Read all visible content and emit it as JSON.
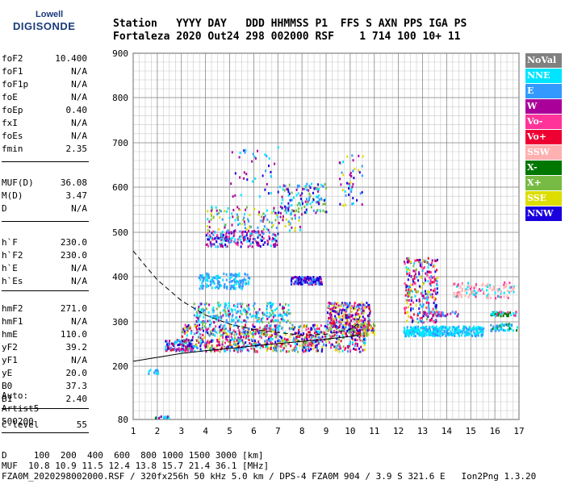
{
  "logo": {
    "line1": "Lowell",
    "line2": "DIGISONDE"
  },
  "header": {
    "line1": "Station   YYYY DAY   DDD HHMMSS P1  FFS S AXN PPS IGA PS",
    "line2": "Fortaleza 2020 Out24 298 002000 RSF    1 714 100 10+ 11"
  },
  "params": [
    {
      "k": "foF2",
      "v": "10.400"
    },
    {
      "k": "foF1",
      "v": "N/A"
    },
    {
      "k": "foF1p",
      "v": "N/A"
    },
    {
      "k": "foE",
      "v": "N/A"
    },
    {
      "k": "foEp",
      "v": "0.40"
    },
    {
      "k": "fxI",
      "v": "N/A"
    },
    {
      "k": "foEs",
      "v": "N/A"
    },
    {
      "k": "fmin",
      "v": "2.35"
    },
    {
      "k": "MUF(D)",
      "v": "36.08"
    },
    {
      "k": "M(D)",
      "v": "3.47"
    },
    {
      "k": "D",
      "v": "N/A"
    },
    {
      "k": "h`F",
      "v": "230.0"
    },
    {
      "k": "h`F2",
      "v": "230.0"
    },
    {
      "k": "h`E",
      "v": "N/A"
    },
    {
      "k": "h`Es",
      "v": "N/A"
    },
    {
      "k": "hmF2",
      "v": "271.0"
    },
    {
      "k": "hmF1",
      "v": "N/A"
    },
    {
      "k": "hmE",
      "v": "110.0"
    },
    {
      "k": "yF2",
      "v": "39.2"
    },
    {
      "k": "yF1",
      "v": "N/A"
    },
    {
      "k": "yE",
      "v": "20.0"
    },
    {
      "k": "B0",
      "v": "37.3"
    },
    {
      "k": "B1",
      "v": "2.40"
    },
    {
      "k": "C-level",
      "v": "55"
    }
  ],
  "auto": {
    "l1": "Auto:",
    "l2": "Artist5",
    "l3": "500200"
  },
  "legend": [
    {
      "label": "NoVal",
      "color": "#808080"
    },
    {
      "label": "NNE",
      "color": "#00e5ff"
    },
    {
      "label": "E",
      "color": "#3399ff"
    },
    {
      "label": "W",
      "color": "#aa0099"
    },
    {
      "label": "Vo-",
      "color": "#ff3399"
    },
    {
      "label": "Vo+",
      "color": "#ee0033"
    },
    {
      "label": "SSW",
      "color": "#ffb0b0"
    },
    {
      "label": "X-",
      "color": "#007700"
    },
    {
      "label": "X+",
      "color": "#77bb44"
    },
    {
      "label": "SSE",
      "color": "#dddd00"
    },
    {
      "label": "NNW",
      "color": "#1a00dd"
    }
  ],
  "footer": {
    "line1": "D     100  200  400  600  800 1000 1500 3000 [km]",
    "line2": "MUF  10.8 10.9 11.5 12.4 13.8 15.7 21.4 36.1 [MHz]",
    "line3": "FZA0M_2020298002000.RSF / 320fx256h 50 kHz 5.0 km / DPS-4 FZA0M 904 / 3.9 S 321.6 E   Ion2Png 1.3.20"
  },
  "chart_data": {
    "type": "scatter",
    "x_ticks": [
      1,
      2,
      3,
      4,
      5,
      6,
      7,
      8,
      9,
      10,
      11,
      12,
      13,
      14,
      15,
      16,
      17
    ],
    "y_ticks": [
      80,
      200,
      300,
      400,
      500,
      600,
      700,
      800,
      900
    ],
    "xlim": [
      1,
      17
    ],
    "ylim": [
      80,
      900
    ],
    "y_scale": "nonlinear",
    "grid": true,
    "legend_placement": "right",
    "curves": {
      "profile": [
        [
          1,
          211
        ],
        [
          2,
          220
        ],
        [
          3,
          229
        ],
        [
          4,
          235
        ],
        [
          5,
          240
        ],
        [
          6,
          246
        ],
        [
          7,
          251
        ],
        [
          8,
          256
        ],
        [
          9,
          261
        ],
        [
          10,
          267
        ],
        [
          10.4,
          271
        ]
      ],
      "dashed": [
        [
          1,
          458
        ],
        [
          1.5,
          425
        ],
        [
          2,
          393
        ],
        [
          3,
          347
        ],
        [
          4,
          315
        ],
        [
          5,
          295
        ],
        [
          6,
          283
        ],
        [
          7,
          276
        ],
        [
          8,
          270
        ],
        [
          9,
          272
        ],
        [
          10,
          283
        ],
        [
          10.3,
          295
        ],
        [
          10.4,
          312
        ]
      ]
    },
    "clusters": [
      {
        "x": [
          1.6,
          2.0
        ],
        "y": [
          185,
          195
        ],
        "series": [
          "NNE",
          "E"
        ],
        "n": 12
      },
      {
        "x": [
          1.9,
          2.5
        ],
        "y": [
          84,
          92
        ],
        "series": [
          "E",
          "NNE",
          "W",
          "X-"
        ],
        "n": 16
      },
      {
        "x": [
          2.3,
          3.4
        ],
        "y": [
          236,
          262
        ],
        "series": [
          "Vo+",
          "W",
          "Vo-",
          "E",
          "NNE",
          "NNW"
        ],
        "n": 110
      },
      {
        "x": [
          3.0,
          10.6
        ],
        "y": [
          235,
          296
        ],
        "series": [
          "Vo+",
          "Vo-",
          "W",
          "E",
          "NNE",
          "NNW",
          "X+",
          "SSE"
        ],
        "n": 900
      },
      {
        "x": [
          3.5,
          7.5
        ],
        "y": [
          300,
          345
        ],
        "series": [
          "NNE",
          "E",
          "NNE",
          "W",
          "X+"
        ],
        "n": 260
      },
      {
        "x": [
          3.7,
          5.8
        ],
        "y": [
          375,
          410
        ],
        "series": [
          "E",
          "NNE",
          "E"
        ],
        "n": 150
      },
      {
        "x": [
          4.0,
          7.0
        ],
        "y": [
          470,
          505
        ],
        "series": [
          "W",
          "W",
          "Vo-",
          "NNE",
          "E",
          "NNW"
        ],
        "n": 210
      },
      {
        "x": [
          4.0,
          8.0
        ],
        "y": [
          505,
          560
        ],
        "series": [
          "NNE",
          "E",
          "W",
          "X+",
          "SSE"
        ],
        "n": 140
      },
      {
        "x": [
          5.0,
          7.0
        ],
        "y": [
          580,
          700
        ],
        "series": [
          "NNE",
          "E",
          "W",
          "NNW"
        ],
        "n": 40
      },
      {
        "x": [
          7.0,
          9.0
        ],
        "y": [
          545,
          610
        ],
        "series": [
          "NNE",
          "E",
          "NNW",
          "W",
          "X+"
        ],
        "n": 120
      },
      {
        "x": [
          7.5,
          8.8
        ],
        "y": [
          385,
          402
        ],
        "series": [
          "NNW",
          "W",
          "NNW",
          "E"
        ],
        "n": 110
      },
      {
        "x": [
          9.0,
          10.8
        ],
        "y": [
          290,
          345
        ],
        "series": [
          "NNW",
          "Vo+",
          "W",
          "Vo-",
          "E",
          "SSE"
        ],
        "n": 260
      },
      {
        "x": [
          10.0,
          11.0
        ],
        "y": [
          270,
          300
        ],
        "series": [
          "SSE",
          "X+",
          "Vo+",
          "NNW"
        ],
        "n": 80
      },
      {
        "x": [
          9.5,
          10.5
        ],
        "y": [
          560,
          680
        ],
        "series": [
          "NNE",
          "E",
          "NNW",
          "W",
          "SSE"
        ],
        "n": 45
      },
      {
        "x": [
          12.2,
          15.5
        ],
        "y": [
          270,
          292
        ],
        "series": [
          "NNE",
          "NNE",
          "E"
        ],
        "n": 360
      },
      {
        "x": [
          12.2,
          13.6
        ],
        "y": [
          300,
          445
        ],
        "series": [
          "Vo-",
          "W",
          "NNW",
          "E",
          "X+",
          "SSE",
          "Vo+",
          "NNE"
        ],
        "n": 280
      },
      {
        "x": [
          14.2,
          16.8
        ],
        "y": [
          355,
          390
        ],
        "series": [
          "SSW",
          "SSW",
          "Vo-",
          "NNE"
        ],
        "n": 110
      },
      {
        "x": [
          15.8,
          16.9
        ],
        "y": [
          315,
          325
        ],
        "series": [
          "X-",
          "X-",
          "NNE",
          "Vo-"
        ],
        "n": 50
      },
      {
        "x": [
          15.8,
          16.9
        ],
        "y": [
          282,
          298
        ],
        "series": [
          "NNE",
          "E",
          "X-"
        ],
        "n": 60
      },
      {
        "x": [
          13.0,
          14.5
        ],
        "y": [
          315,
          325
        ],
        "series": [
          "Vo-",
          "W",
          "E"
        ],
        "n": 40
      }
    ]
  }
}
